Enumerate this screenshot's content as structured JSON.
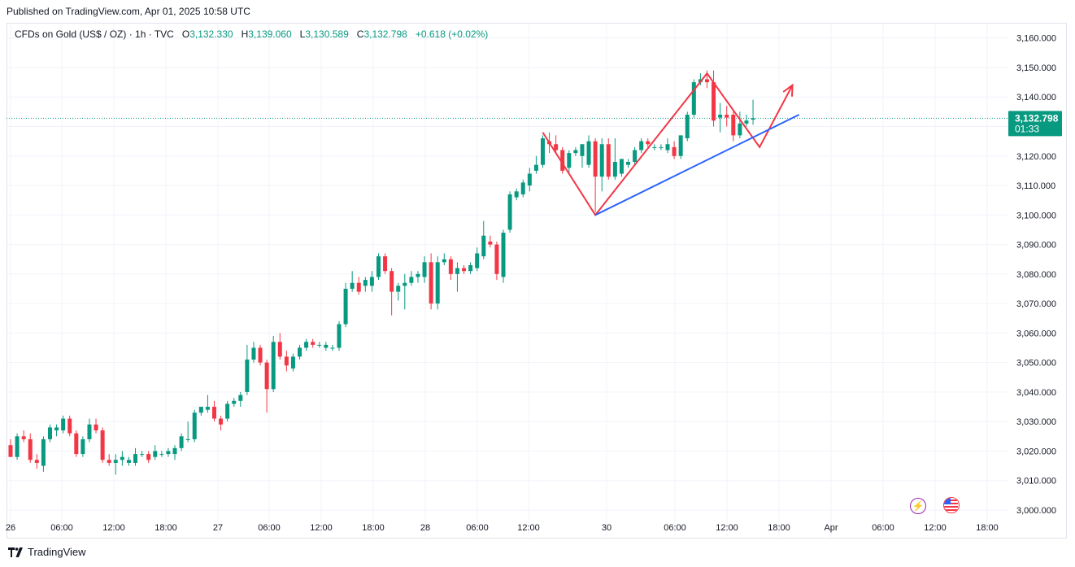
{
  "header": {
    "published": "Published on TradingView.com, Apr 01, 2025 10:58 UTC"
  },
  "legend": {
    "symbol": "CFDs on Gold (US$ / OZ) · 1h · TVC",
    "o_label": "O",
    "o": "3,132.330",
    "h_label": "H",
    "h": "3,139.060",
    "l_label": "L",
    "l": "3,130.589",
    "c_label": "C",
    "c": "3,132.798",
    "change": "+0.618 (+0.02%)"
  },
  "price_tag": {
    "price": "3,132.798",
    "countdown": "01:33"
  },
  "footer": {
    "brand": "TradingView"
  },
  "colors": {
    "up": "#089981",
    "down": "#f23645",
    "pattern": "#f23645",
    "trendline": "#2962ff",
    "grid": "#f0f3fa"
  },
  "icons": [
    "lightning-event-icon",
    "us-flag-event-icon",
    "tradingview-logo-icon"
  ],
  "chart_data": {
    "type": "candlestick",
    "title": "CFDs on Gold (US$ / OZ) · 1h · TVC",
    "ylim": [
      2997,
      3163
    ],
    "y_ticks": [
      "3,000.000",
      "3,010.000",
      "3,020.000",
      "3,030.000",
      "3,040.000",
      "3,050.000",
      "3,060.000",
      "3,070.000",
      "3,080.000",
      "3,090.000",
      "3,100.000",
      "3,110.000",
      "3,120.000",
      "3,130.000",
      "3,140.000",
      "3,150.000",
      "3,160.000"
    ],
    "x_ticks": [
      "26",
      "06:00",
      "12:00",
      "18:00",
      "27",
      "06:00",
      "12:00",
      "18:00",
      "28",
      "06:00",
      "12:00",
      "30",
      "06:00",
      "12:00",
      "18:00",
      "Apr",
      "06:00",
      "12:00",
      "18:00"
    ],
    "grid": true,
    "candles": [
      {
        "o": 3022,
        "h": 3024,
        "l": 3018,
        "c": 3018
      },
      {
        "o": 3018,
        "h": 3026,
        "l": 3017,
        "c": 3025
      },
      {
        "o": 3025,
        "h": 3027,
        "l": 3023,
        "c": 3024
      },
      {
        "o": 3024,
        "h": 3026,
        "l": 3016,
        "c": 3017
      },
      {
        "o": 3017,
        "h": 3019,
        "l": 3014,
        "c": 3016
      },
      {
        "o": 3015,
        "h": 3025,
        "l": 3013,
        "c": 3024
      },
      {
        "o": 3024,
        "h": 3029,
        "l": 3023,
        "c": 3028
      },
      {
        "o": 3027,
        "h": 3029,
        "l": 3025,
        "c": 3028
      },
      {
        "o": 3027,
        "h": 3032,
        "l": 3026,
        "c": 3031
      },
      {
        "o": 3031,
        "h": 3032,
        "l": 3025,
        "c": 3026
      },
      {
        "o": 3026,
        "h": 3027,
        "l": 3018,
        "c": 3019
      },
      {
        "o": 3019,
        "h": 3025,
        "l": 3018,
        "c": 3024
      },
      {
        "o": 3024,
        "h": 3031,
        "l": 3023,
        "c": 3029
      },
      {
        "o": 3029,
        "h": 3031,
        "l": 3026,
        "c": 3027
      },
      {
        "o": 3027,
        "h": 3028,
        "l": 3016,
        "c": 3017
      },
      {
        "o": 3017,
        "h": 3019,
        "l": 3015,
        "c": 3016
      },
      {
        "o": 3016,
        "h": 3019,
        "l": 3012,
        "c": 3017
      },
      {
        "o": 3017,
        "h": 3020,
        "l": 3015,
        "c": 3018
      },
      {
        "o": 3016,
        "h": 3018,
        "l": 3015,
        "c": 3017
      },
      {
        "o": 3016,
        "h": 3021,
        "l": 3015,
        "c": 3019
      },
      {
        "o": 3019,
        "h": 3020,
        "l": 3018,
        "c": 3019
      },
      {
        "o": 3019,
        "h": 3020,
        "l": 3016,
        "c": 3017
      },
      {
        "o": 3018,
        "h": 3022,
        "l": 3017,
        "c": 3020
      },
      {
        "o": 3019,
        "h": 3020,
        "l": 3018,
        "c": 3019
      },
      {
        "o": 3019,
        "h": 3021,
        "l": 3018,
        "c": 3020
      },
      {
        "o": 3019,
        "h": 3022,
        "l": 3017,
        "c": 3021
      },
      {
        "o": 3021,
        "h": 3026,
        "l": 3020,
        "c": 3025
      },
      {
        "o": 3024,
        "h": 3030,
        "l": 3023,
        "c": 3024
      },
      {
        "o": 3024,
        "h": 3034,
        "l": 3023,
        "c": 3033
      },
      {
        "o": 3033,
        "h": 3035,
        "l": 3032,
        "c": 3035
      },
      {
        "o": 3034,
        "h": 3039,
        "l": 3033,
        "c": 3035
      },
      {
        "o": 3035,
        "h": 3037,
        "l": 3030,
        "c": 3031
      },
      {
        "o": 3031,
        "h": 3032,
        "l": 3027,
        "c": 3029
      },
      {
        "o": 3031,
        "h": 3037,
        "l": 3030,
        "c": 3036
      },
      {
        "o": 3036,
        "h": 3038,
        "l": 3035,
        "c": 3037
      },
      {
        "o": 3037,
        "h": 3040,
        "l": 3035,
        "c": 3039
      },
      {
        "o": 3040,
        "h": 3056,
        "l": 3039,
        "c": 3051
      },
      {
        "o": 3051,
        "h": 3057,
        "l": 3050,
        "c": 3055
      },
      {
        "o": 3055,
        "h": 3056,
        "l": 3049,
        "c": 3050
      },
      {
        "o": 3050,
        "h": 3051,
        "l": 3033,
        "c": 3041
      },
      {
        "o": 3041,
        "h": 3059,
        "l": 3040,
        "c": 3057
      },
      {
        "o": 3057,
        "h": 3060,
        "l": 3051,
        "c": 3052
      },
      {
        "o": 3052,
        "h": 3054,
        "l": 3047,
        "c": 3049
      },
      {
        "o": 3048,
        "h": 3053,
        "l": 3047,
        "c": 3052
      },
      {
        "o": 3052,
        "h": 3056,
        "l": 3051,
        "c": 3055
      },
      {
        "o": 3055,
        "h": 3058,
        "l": 3054,
        "c": 3057
      },
      {
        "o": 3057,
        "h": 3058,
        "l": 3055,
        "c": 3056
      },
      {
        "o": 3056,
        "h": 3057,
        "l": 3055,
        "c": 3056
      },
      {
        "o": 3055,
        "h": 3057,
        "l": 3054,
        "c": 3056
      },
      {
        "o": 3055,
        "h": 3056,
        "l": 3054,
        "c": 3055
      },
      {
        "o": 3055,
        "h": 3064,
        "l": 3054,
        "c": 3063
      },
      {
        "o": 3063,
        "h": 3077,
        "l": 3062,
        "c": 3075
      },
      {
        "o": 3075,
        "h": 3081,
        "l": 3074,
        "c": 3077
      },
      {
        "o": 3077,
        "h": 3079,
        "l": 3073,
        "c": 3074
      },
      {
        "o": 3076,
        "h": 3079,
        "l": 3074,
        "c": 3078
      },
      {
        "o": 3076,
        "h": 3081,
        "l": 3074,
        "c": 3079
      },
      {
        "o": 3079,
        "h": 3087,
        "l": 3078,
        "c": 3086
      },
      {
        "o": 3086,
        "h": 3087,
        "l": 3080,
        "c": 3081
      },
      {
        "o": 3081,
        "h": 3082,
        "l": 3066,
        "c": 3074
      },
      {
        "o": 3074,
        "h": 3077,
        "l": 3071,
        "c": 3076
      },
      {
        "o": 3076,
        "h": 3080,
        "l": 3068,
        "c": 3077
      },
      {
        "o": 3077,
        "h": 3081,
        "l": 3076,
        "c": 3079
      },
      {
        "o": 3079,
        "h": 3081,
        "l": 3077,
        "c": 3080
      },
      {
        "o": 3079,
        "h": 3086,
        "l": 3077,
        "c": 3084
      },
      {
        "o": 3084,
        "h": 3087,
        "l": 3068,
        "c": 3070
      },
      {
        "o": 3070,
        "h": 3086,
        "l": 3068,
        "c": 3084
      },
      {
        "o": 3084,
        "h": 3087,
        "l": 3083,
        "c": 3085
      },
      {
        "o": 3085,
        "h": 3086,
        "l": 3078,
        "c": 3080
      },
      {
        "o": 3080,
        "h": 3084,
        "l": 3074,
        "c": 3082
      },
      {
        "o": 3082,
        "h": 3083,
        "l": 3080,
        "c": 3081
      },
      {
        "o": 3081,
        "h": 3084,
        "l": 3080,
        "c": 3083
      },
      {
        "o": 3082,
        "h": 3089,
        "l": 3081,
        "c": 3087
      },
      {
        "o": 3086,
        "h": 3098,
        "l": 3085,
        "c": 3093
      },
      {
        "o": 3091,
        "h": 3093,
        "l": 3089,
        "c": 3090
      },
      {
        "o": 3090,
        "h": 3091,
        "l": 3078,
        "c": 3080
      },
      {
        "o": 3079,
        "h": 3095,
        "l": 3077,
        "c": 3094
      },
      {
        "o": 3095,
        "h": 3108,
        "l": 3094,
        "c": 3107
      },
      {
        "o": 3106,
        "h": 3109,
        "l": 3105,
        "c": 3108
      },
      {
        "o": 3107,
        "h": 3112,
        "l": 3106,
        "c": 3111
      },
      {
        "o": 3110,
        "h": 3116,
        "l": 3108,
        "c": 3114
      },
      {
        "o": 3115,
        "h": 3120,
        "l": 3114,
        "c": 3117
      },
      {
        "o": 3117,
        "h": 3127,
        "l": 3116,
        "c": 3126
      },
      {
        "o": 3125,
        "h": 3128,
        "l": 3121,
        "c": 3124
      },
      {
        "o": 3124,
        "h": 3127,
        "l": 3121,
        "c": 3122
      },
      {
        "o": 3122,
        "h": 3123,
        "l": 3114,
        "c": 3115
      },
      {
        "o": 3116,
        "h": 3122,
        "l": 3114,
        "c": 3121
      },
      {
        "o": 3121,
        "h": 3123,
        "l": 3120,
        "c": 3122
      },
      {
        "o": 3120,
        "h": 3124,
        "l": 3116,
        "c": 3124
      },
      {
        "o": 3117,
        "h": 3127,
        "l": 3116,
        "c": 3125
      },
      {
        "o": 3125,
        "h": 3126,
        "l": 3101,
        "c": 3113
      },
      {
        "o": 3113,
        "h": 3126,
        "l": 3108,
        "c": 3124
      },
      {
        "o": 3124,
        "h": 3126,
        "l": 3112,
        "c": 3113
      },
      {
        "o": 3113,
        "h": 3126,
        "l": 3112,
        "c": 3118
      },
      {
        "o": 3114,
        "h": 3119,
        "l": 3113,
        "c": 3119
      },
      {
        "o": 3117,
        "h": 3119,
        "l": 3116,
        "c": 3118
      },
      {
        "o": 3118,
        "h": 3123,
        "l": 3117,
        "c": 3122
      },
      {
        "o": 3122,
        "h": 3126,
        "l": 3121,
        "c": 3125
      },
      {
        "o": 3125,
        "h": 3126,
        "l": 3123,
        "c": 3124
      },
      {
        "o": 3123,
        "h": 3124,
        "l": 3122,
        "c": 3123
      },
      {
        "o": 3123,
        "h": 3124,
        "l": 3122,
        "c": 3123
      },
      {
        "o": 3122,
        "h": 3126,
        "l": 3121,
        "c": 3124
      },
      {
        "o": 3123,
        "h": 3125,
        "l": 3119,
        "c": 3120
      },
      {
        "o": 3120,
        "h": 3127,
        "l": 3119,
        "c": 3127
      },
      {
        "o": 3126,
        "h": 3135,
        "l": 3125,
        "c": 3134
      },
      {
        "o": 3134,
        "h": 3146,
        "l": 3133,
        "c": 3145
      },
      {
        "o": 3145,
        "h": 3148,
        "l": 3144,
        "c": 3146
      },
      {
        "o": 3146,
        "h": 3149,
        "l": 3143,
        "c": 3145
      },
      {
        "o": 3145,
        "h": 3149,
        "l": 3130,
        "c": 3132
      },
      {
        "o": 3133,
        "h": 3138,
        "l": 3128,
        "c": 3134
      },
      {
        "o": 3134,
        "h": 3137,
        "l": 3130,
        "c": 3133
      },
      {
        "o": 3134,
        "h": 3135,
        "l": 3125,
        "c": 3127
      },
      {
        "o": 3127,
        "h": 3135,
        "l": 3126,
        "c": 3131
      },
      {
        "o": 3131,
        "h": 3134,
        "l": 3130,
        "c": 3132
      },
      {
        "o": 3132.33,
        "h": 3139.06,
        "l": 3130.589,
        "c": 3132.798
      }
    ],
    "overlays": {
      "pattern_polyline": [
        [
          81,
          3128
        ],
        [
          89,
          3100
        ],
        [
          106,
          3148
        ],
        [
          114,
          3123
        ],
        [
          119,
          3144
        ]
      ],
      "trendline": [
        [
          89,
          3100
        ],
        [
          120,
          3134
        ]
      ]
    }
  }
}
